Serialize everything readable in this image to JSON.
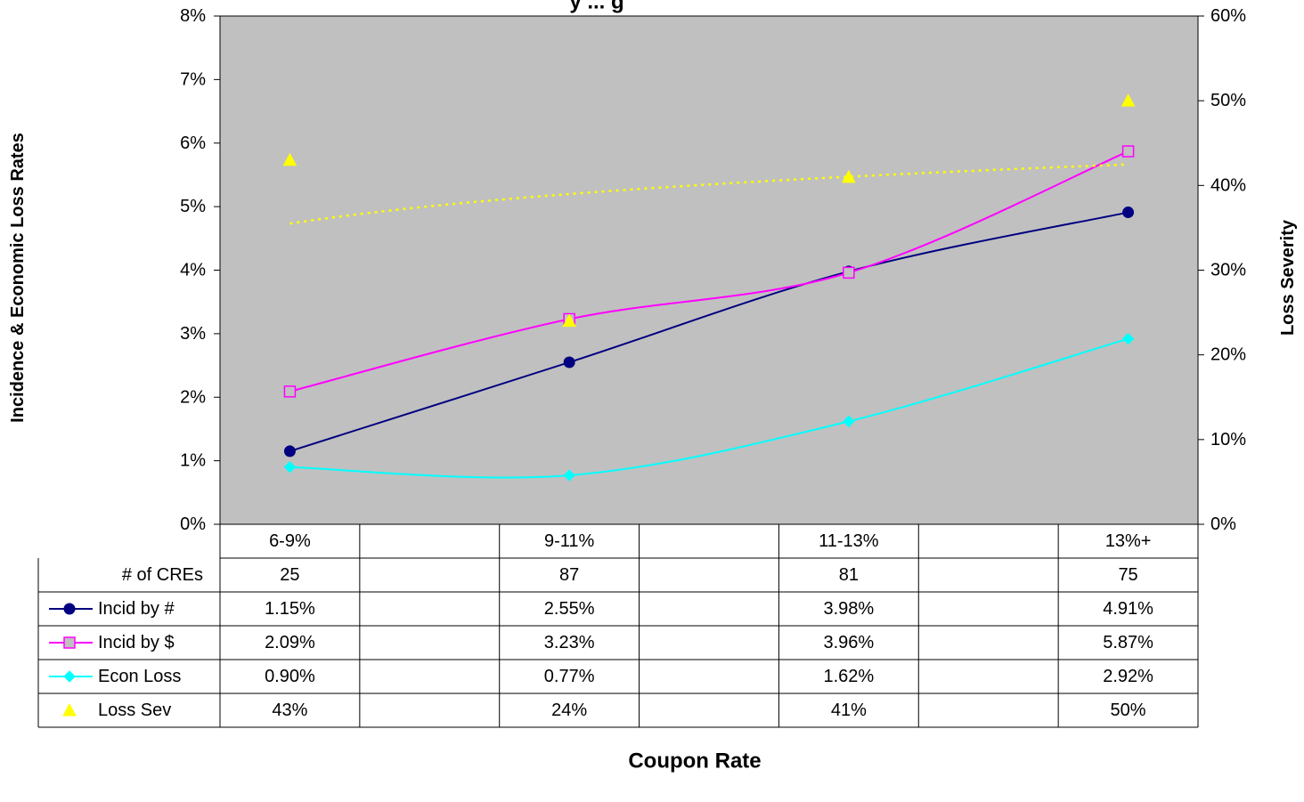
{
  "chart_data": {
    "type": "line",
    "title_visible_fragment": "y ... g",
    "categories": [
      "6-9%",
      "9-11%",
      "11-13%",
      "13%+"
    ],
    "xlabel": "Coupon Rate",
    "ylabel_left": "Incidence & Economic Loss Rates",
    "ylabel_right": "Loss Severity",
    "ylim_left": [
      0,
      8
    ],
    "ylim_right": [
      0,
      60
    ],
    "yticks_left": [
      "0%",
      "1%",
      "2%",
      "3%",
      "4%",
      "5%",
      "6%",
      "7%",
      "8%"
    ],
    "yticks_right": [
      "0%",
      "10%",
      "20%",
      "30%",
      "40%",
      "50%",
      "60%"
    ],
    "grid": false,
    "plot_background": "#c0c0c0",
    "series": [
      {
        "name": "Incid by #",
        "axis": "left",
        "color": "#000080",
        "marker": "circle",
        "values": [
          1.15,
          2.55,
          3.98,
          4.91
        ],
        "labels": [
          "1.15%",
          "2.55%",
          "3.98%",
          "4.91%"
        ]
      },
      {
        "name": "Incid by $",
        "axis": "left",
        "color": "#ff00ff",
        "marker": "square",
        "values": [
          2.09,
          3.23,
          3.96,
          5.87
        ],
        "labels": [
          "2.09%",
          "3.23%",
          "3.96%",
          "5.87%"
        ]
      },
      {
        "name": "Econ Loss",
        "axis": "left",
        "color": "#00ffff",
        "marker": "diamond",
        "values": [
          0.9,
          0.77,
          1.62,
          2.92
        ],
        "labels": [
          "0.90%",
          "0.77%",
          "1.62%",
          "2.92%"
        ]
      },
      {
        "name": "Loss Sev",
        "axis": "right",
        "color": "#ffff00",
        "marker": "triangle",
        "values": [
          43,
          24,
          41,
          50
        ],
        "labels": [
          "43%",
          "24%",
          "41%",
          "50%"
        ],
        "trendline": "dotted"
      }
    ],
    "table": {
      "count_label": "# of CREs",
      "counts": [
        "25",
        "87",
        "81",
        "75"
      ]
    }
  }
}
